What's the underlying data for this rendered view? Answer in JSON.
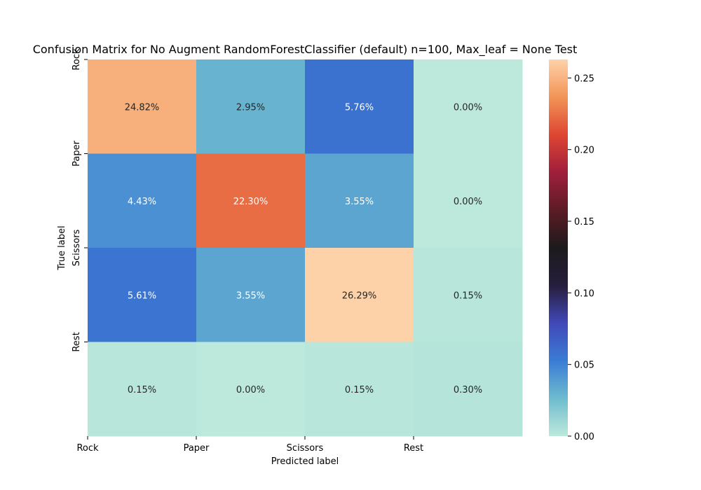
{
  "chart_data": {
    "type": "heatmap",
    "title": "Confusion Matrix for No Augment RandomForestClassifier (default) n=100, Max_leaf = None Test",
    "xlabel": "Predicted label",
    "ylabel": "True label",
    "x_categories": [
      "Rock",
      "Paper",
      "Scissors",
      "Rest"
    ],
    "y_categories": [
      "Rock",
      "Paper",
      "Scissors",
      "Rest"
    ],
    "values": [
      [
        0.2482,
        0.0295,
        0.0576,
        0.0
      ],
      [
        0.0443,
        0.223,
        0.0355,
        0.0
      ],
      [
        0.0561,
        0.0355,
        0.2629,
        0.0015
      ],
      [
        0.0015,
        0.0,
        0.0015,
        0.003
      ]
    ],
    "cell_labels": [
      [
        "24.82%",
        "2.95%",
        "5.76%",
        "0.00%"
      ],
      [
        "4.43%",
        "22.30%",
        "3.55%",
        "0.00%"
      ],
      [
        "5.61%",
        "3.55%",
        "26.29%",
        "0.15%"
      ],
      [
        "0.15%",
        "0.00%",
        "0.15%",
        "0.30%"
      ]
    ],
    "colorbar": {
      "range": [
        0,
        0.2629
      ],
      "ticks": [
        0.0,
        0.05,
        0.1,
        0.15,
        0.2,
        0.25
      ],
      "tick_labels": [
        "0.00",
        "0.05",
        "0.10",
        "0.15",
        "0.20",
        "0.25"
      ],
      "colormap": "icefire"
    },
    "grid": false
  }
}
